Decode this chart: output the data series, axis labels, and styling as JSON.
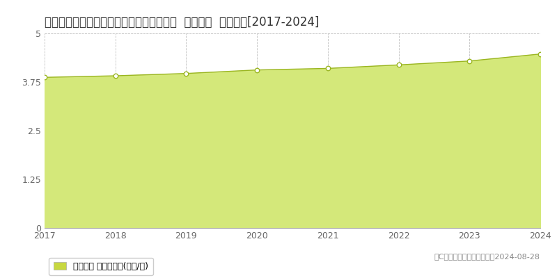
{
  "title": "鳳取県米子市西福原７丁目１０６２番１外  地価公示  地価推移[2017-2024]",
  "years": [
    2017,
    2018,
    2019,
    2020,
    2021,
    2022,
    2023,
    2024
  ],
  "values": [
    3.87,
    3.91,
    3.97,
    4.06,
    4.1,
    4.19,
    4.29,
    4.47
  ],
  "ylim": [
    0,
    5
  ],
  "yticks": [
    0,
    1.25,
    2.5,
    3.75,
    5
  ],
  "line_color": "#9ab520",
  "fill_color": "#d4e87a",
  "fill_alpha": 1.0,
  "marker_facecolor": "#ffffff",
  "marker_edgecolor": "#9ab520",
  "grid_color": "#bbbbbb",
  "background_color": "#ffffff",
  "legend_label": "地価公示 平均嵪単価(万円/嵪)",
  "legend_marker_color": "#c8d840",
  "copyright_text": "（C）土地価格ドットコム　2024-08-28",
  "title_fontsize": 12,
  "axis_fontsize": 9,
  "legend_fontsize": 9,
  "copyright_fontsize": 8,
  "tick_color": "#666666"
}
